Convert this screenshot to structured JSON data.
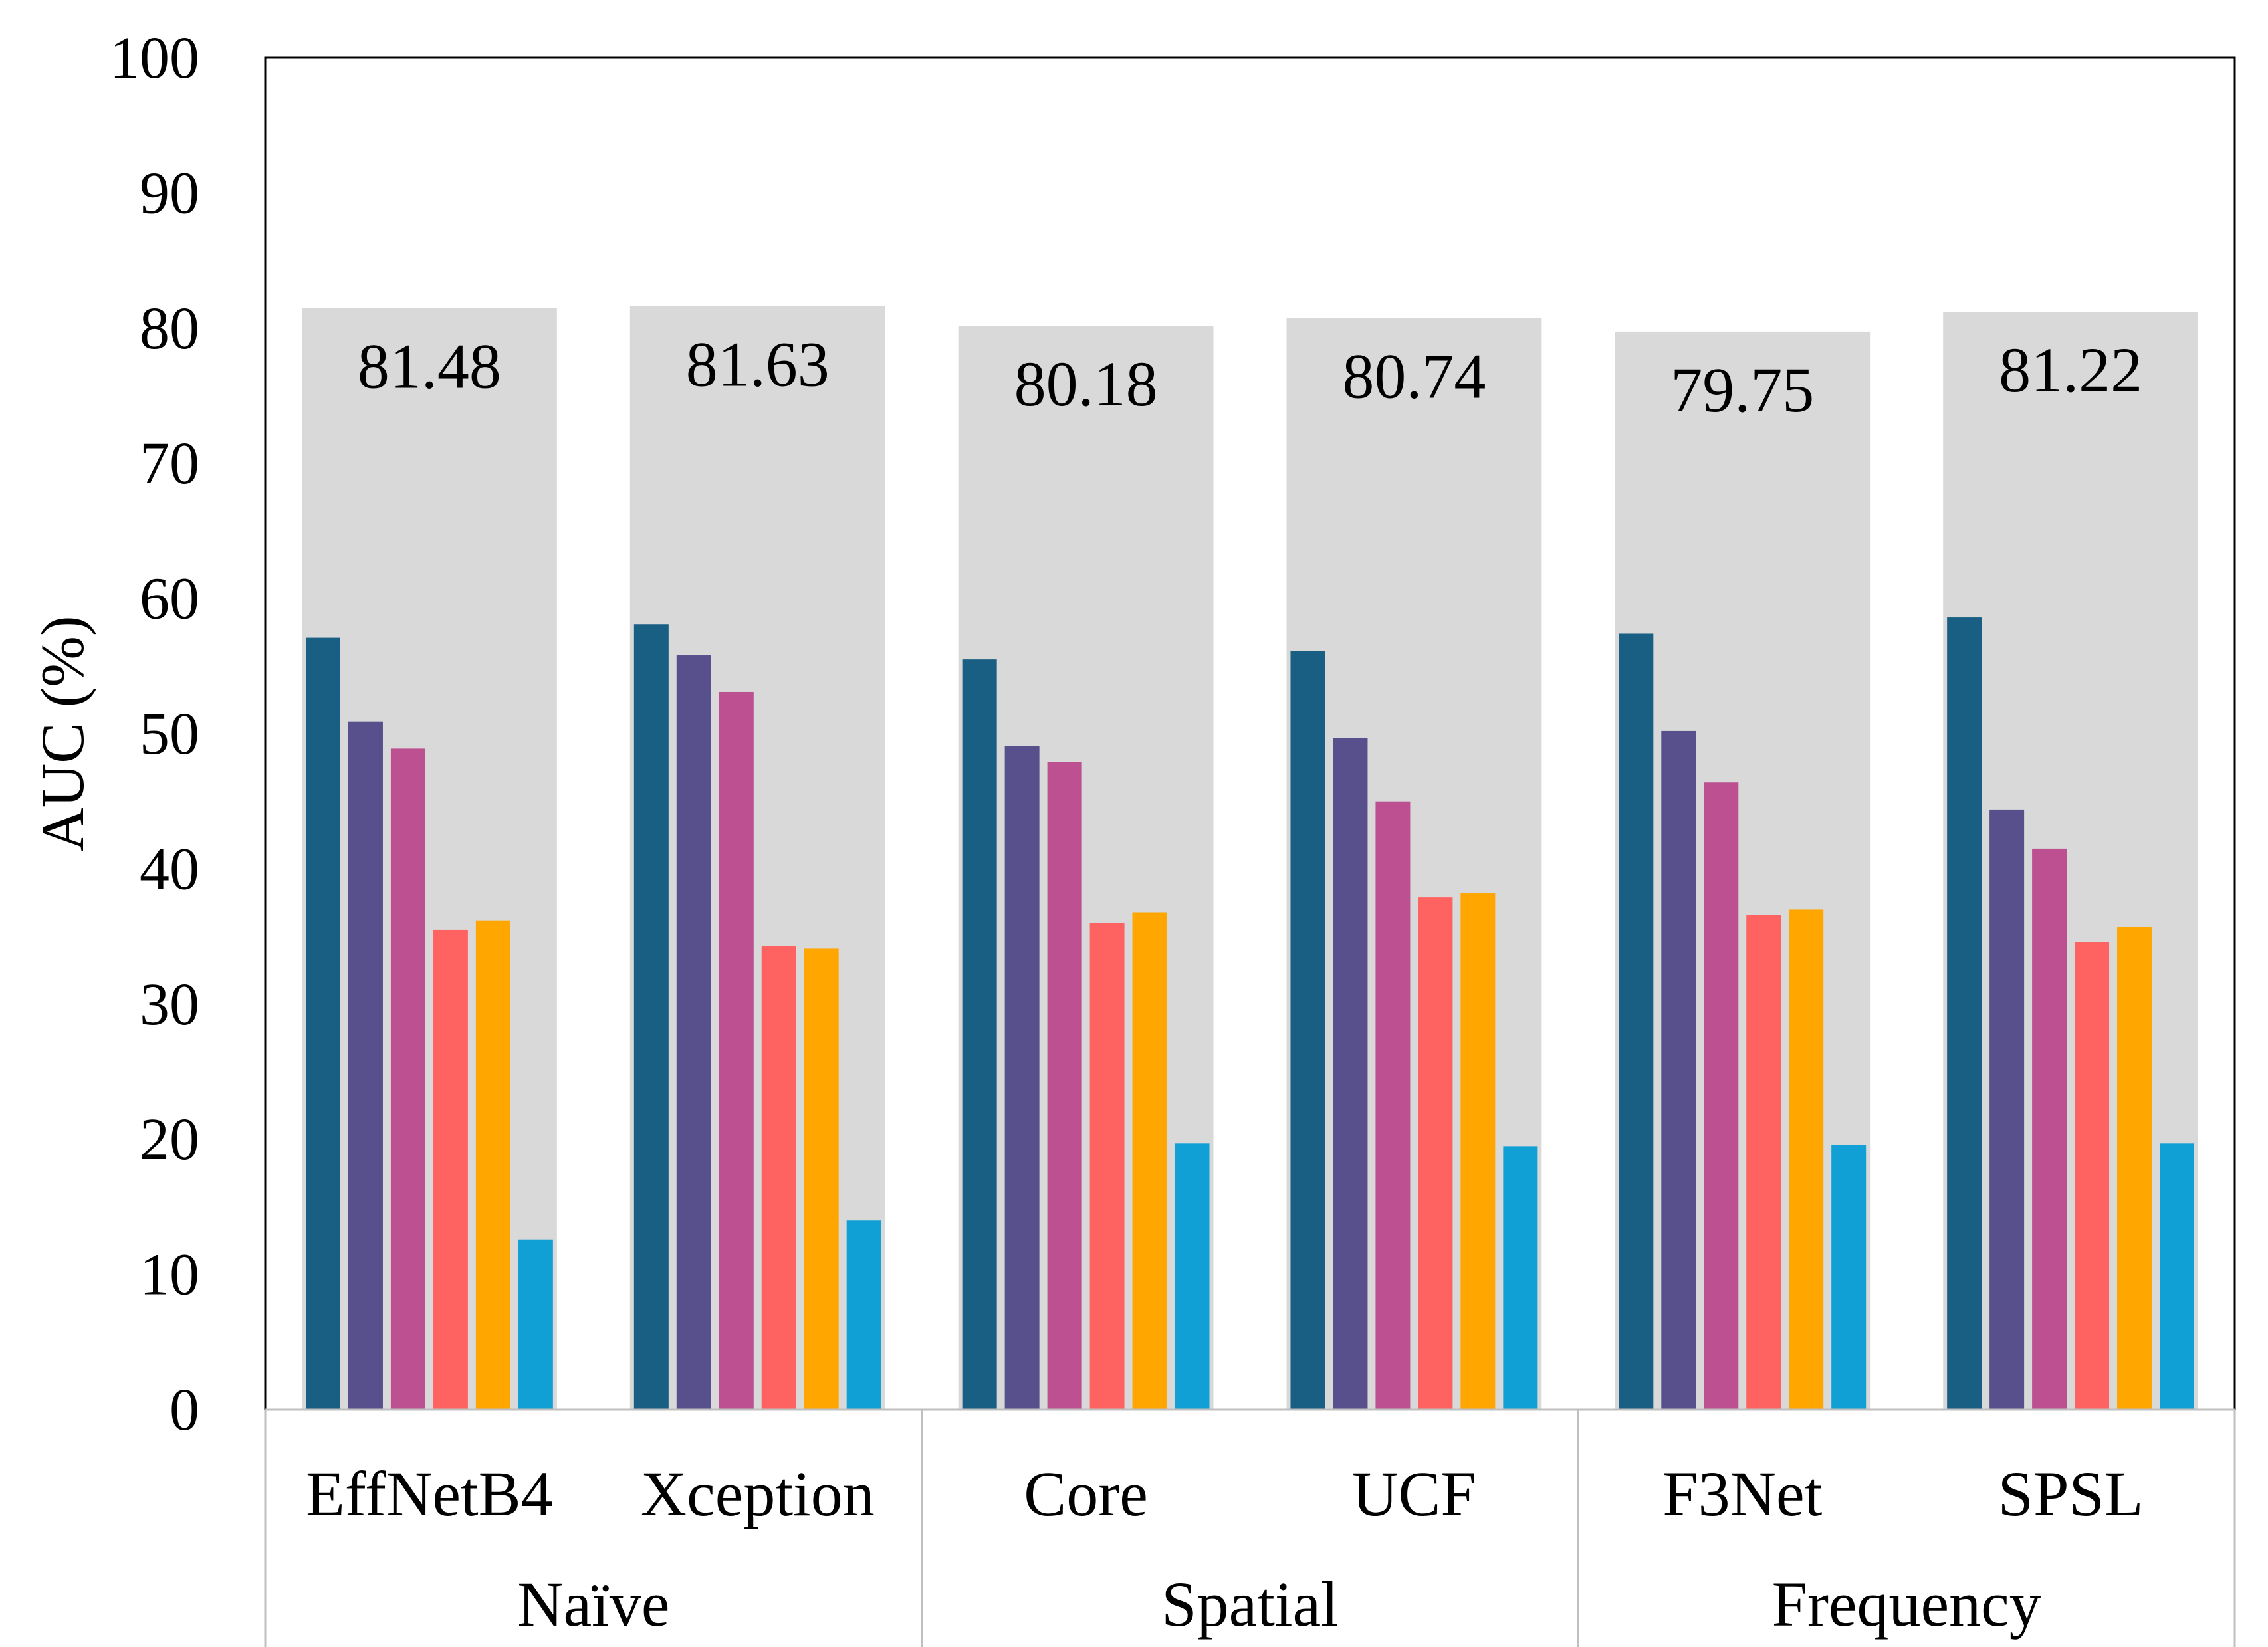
{
  "chart_data": {
    "type": "bar",
    "ylabel": "AUC (%)",
    "ylim": [
      0,
      100
    ],
    "yticks": [
      0,
      10,
      20,
      30,
      40,
      50,
      60,
      70,
      80,
      90,
      100
    ],
    "grid": false,
    "legend": "none",
    "categories": [
      "EffNetB4",
      "Xception",
      "Core",
      "UCF",
      "F3Net",
      "SPSL"
    ],
    "groups": [
      {
        "label": "Naïve",
        "span": 2
      },
      {
        "label": "Spatial",
        "span": 2
      },
      {
        "label": "Frequency",
        "span": 2
      }
    ],
    "background_values": [
      81.48,
      81.63,
      80.18,
      80.74,
      79.75,
      81.22
    ],
    "background_labels": [
      "81.48",
      "81.63",
      "80.18",
      "80.74",
      "79.75",
      "81.22"
    ],
    "background_color": "#d9d9d9",
    "series_colors": [
      "#195e83",
      "#58508d",
      "#bc5090",
      "#ff6361",
      "#ffa600",
      "#11a0d6"
    ],
    "series_values": [
      [
        57.1,
        50.9,
        48.9,
        35.5,
        36.2,
        12.6
      ],
      [
        58.1,
        55.8,
        53.1,
        34.3,
        34.1,
        14.0
      ],
      [
        55.5,
        49.1,
        47.9,
        36.0,
        36.8,
        19.7
      ],
      [
        56.1,
        49.7,
        45.0,
        37.9,
        38.2,
        19.5
      ],
      [
        57.4,
        50.2,
        46.4,
        36.6,
        37.0,
        19.6
      ],
      [
        58.6,
        44.4,
        41.5,
        34.6,
        35.7,
        19.7
      ]
    ]
  }
}
